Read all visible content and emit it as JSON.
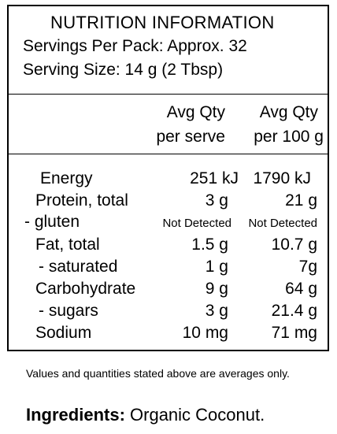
{
  "panel": {
    "title": "NUTRITION INFORMATION",
    "servings": "Servings Per Pack: Approx. 32",
    "serving_size": "Serving Size: 14 g (2 Tbsp)",
    "col1_header": [
      "Avg Qty",
      "per serve"
    ],
    "col2_header": [
      "Avg Qty",
      "per 100 g"
    ],
    "rows": [
      {
        "label": "Energy",
        "per_serve": "251 kJ",
        "per_100g": "1790 kJ"
      },
      {
        "label": "Protein, total",
        "per_serve": "3 g",
        "per_100g": "21 g"
      },
      {
        "label": "- gluten",
        "per_serve": "Not Detected",
        "per_100g": "Not Detected"
      },
      {
        "label": "Fat, total",
        "per_serve": "1.5 g",
        "per_100g": "10.7 g"
      },
      {
        "label": "- saturated",
        "per_serve": "1 g",
        "per_100g": "7g"
      },
      {
        "label": "Carbohydrate",
        "per_serve": "9 g",
        "per_100g": "64 g"
      },
      {
        "label": "- sugars",
        "per_serve": "3 g",
        "per_100g": "21.4 g"
      },
      {
        "label": "Sodium",
        "per_serve": "10 mg",
        "per_100g": "71 mg"
      }
    ]
  },
  "footnote": "Values and quantities stated above are averages only.",
  "ingredients": {
    "label": "Ingredients:",
    "text": " Organic Coconut."
  }
}
